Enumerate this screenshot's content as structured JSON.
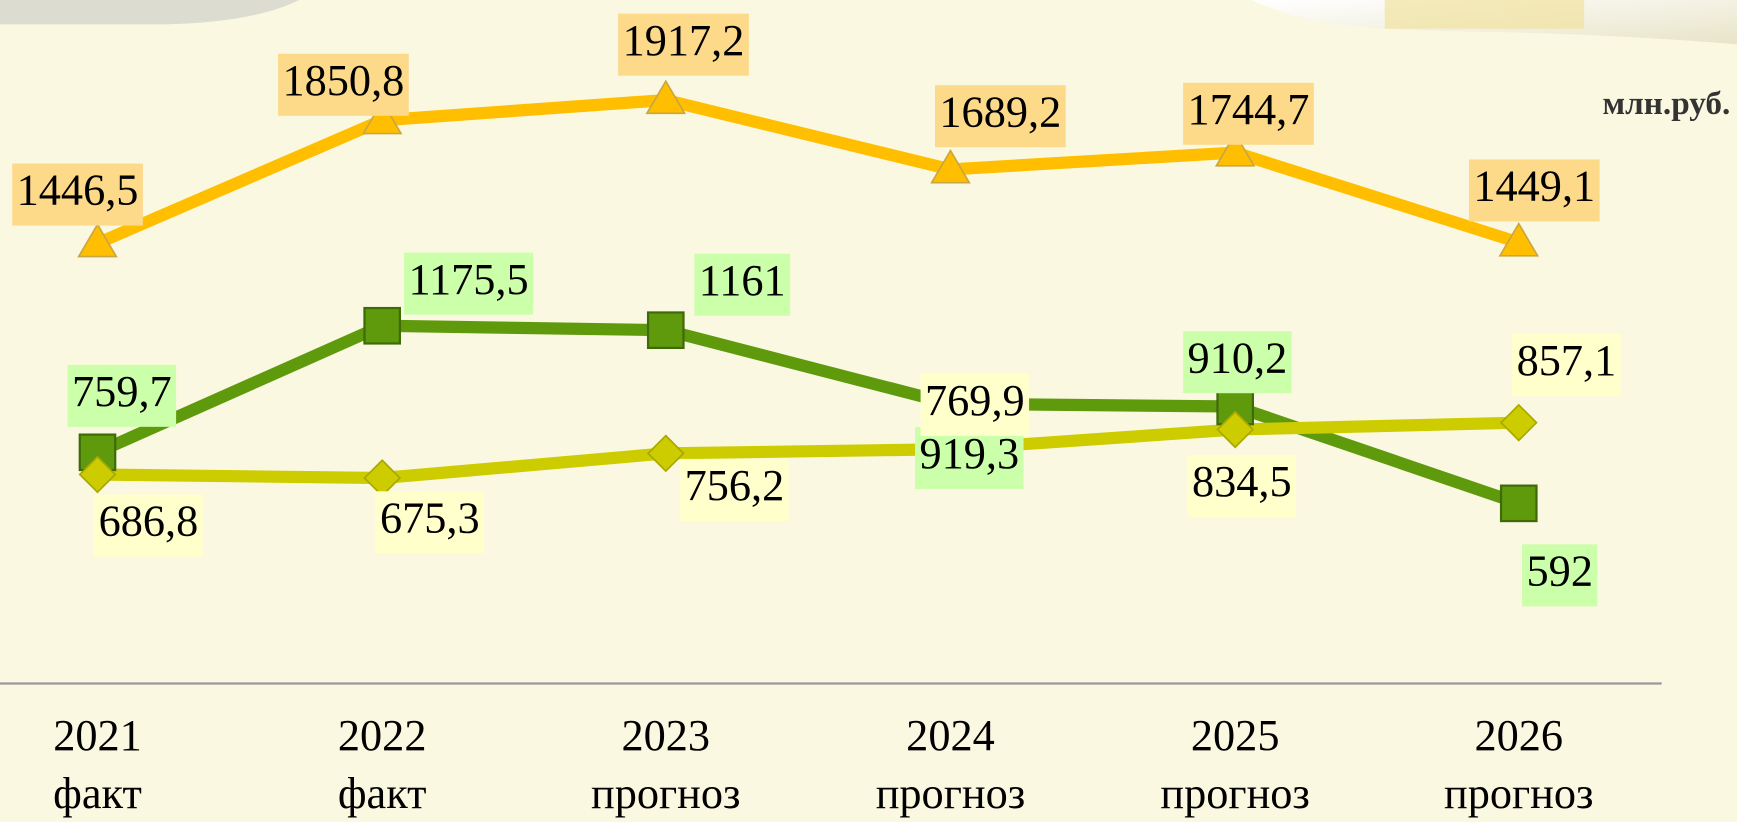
{
  "chart_data": {
    "type": "line",
    "units": "млн.руб.",
    "categories": [
      [
        "2021",
        "факт"
      ],
      [
        "2022",
        "факт"
      ],
      [
        "2023",
        "прогноз"
      ],
      [
        "2024",
        "прогноз"
      ],
      [
        "2025",
        "прогноз"
      ],
      [
        "2026",
        "прогноз"
      ]
    ],
    "ylim": [
      0,
      2200
    ],
    "series": [
      {
        "color": "#ffbf00",
        "label_color": "#fdd98a",
        "marker": "triangle",
        "values": [
          1446.5,
          1850.8,
          1917.2,
          1689.2,
          1744.7,
          1449.1
        ],
        "value_labels": [
          "1446,5",
          "1850,8",
          "1917,2",
          "1689,2",
          "1744,7",
          "1449,1"
        ]
      },
      {
        "color": "#5e9a0c",
        "label_color": "#ccffaa",
        "marker": "square",
        "values": [
          759.7,
          1175.5,
          1161,
          919.3,
          910.2,
          592
        ],
        "value_labels": [
          "759,7",
          "1175,5",
          "1161",
          "919,3",
          "910,2",
          "592"
        ]
      },
      {
        "color": "#cccc00",
        "label_color": "#ffffcc",
        "marker": "diamond",
        "values": [
          686.8,
          675.3,
          756.2,
          769.9,
          834.5,
          857.1
        ],
        "value_labels": [
          "686,8",
          "675,3",
          "756,2",
          "769,9",
          "834,5",
          "857,1"
        ]
      }
    ]
  }
}
